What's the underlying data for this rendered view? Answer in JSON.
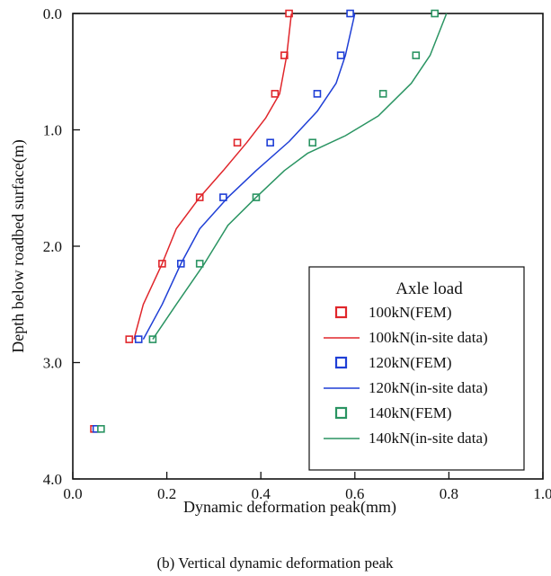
{
  "caption": "(b) Vertical dynamic deformation peak",
  "chart_data": {
    "type": "scatter",
    "xlabel": "Dynamic deformation peak(mm)",
    "ylabel": "Depth below roadbed surface(m)",
    "xlim": [
      0.0,
      1.0
    ],
    "ylim": [
      0.0,
      4.0
    ],
    "y_inverted": true,
    "x_ticks": [
      "0.0",
      "0.2",
      "0.4",
      "0.6",
      "0.8",
      "1.0"
    ],
    "y_ticks": [
      "0.0",
      "1.0",
      "2.0",
      "3.0",
      "4.0"
    ],
    "x_tick_values": [
      0.0,
      0.2,
      0.4,
      0.6,
      0.8,
      1.0
    ],
    "y_tick_values": [
      0.0,
      1.0,
      2.0,
      3.0,
      4.0
    ],
    "grid": false,
    "legend": {
      "title": "Axle load",
      "placement": "bottom-right"
    },
    "series": [
      {
        "name": "100kN(FEM)",
        "kind": "markers",
        "color": "#e0262b",
        "points": [
          [
            0.46,
            0.0
          ],
          [
            0.45,
            0.36
          ],
          [
            0.43,
            0.69
          ],
          [
            0.35,
            1.11
          ],
          [
            0.27,
            1.58
          ],
          [
            0.19,
            2.15
          ],
          [
            0.12,
            2.8
          ],
          [
            0.045,
            3.57
          ]
        ]
      },
      {
        "name": "100kN(in-site data)",
        "kind": "line",
        "color": "#e0262b",
        "points": [
          [
            0.465,
            0.0
          ],
          [
            0.455,
            0.36
          ],
          [
            0.44,
            0.69
          ],
          [
            0.41,
            0.9
          ],
          [
            0.37,
            1.11
          ],
          [
            0.32,
            1.35
          ],
          [
            0.27,
            1.58
          ],
          [
            0.22,
            1.85
          ],
          [
            0.19,
            2.15
          ],
          [
            0.15,
            2.5
          ],
          [
            0.13,
            2.8
          ]
        ]
      },
      {
        "name": "120kN(FEM)",
        "kind": "markers",
        "color": "#1f3fd6",
        "points": [
          [
            0.59,
            0.0
          ],
          [
            0.57,
            0.36
          ],
          [
            0.52,
            0.69
          ],
          [
            0.42,
            1.11
          ],
          [
            0.32,
            1.58
          ],
          [
            0.23,
            2.15
          ],
          [
            0.14,
            2.8
          ],
          [
            0.05,
            3.57
          ]
        ]
      },
      {
        "name": "120kN(in-site data)",
        "kind": "line",
        "color": "#1f3fd6",
        "points": [
          [
            0.6,
            0.0
          ],
          [
            0.58,
            0.36
          ],
          [
            0.56,
            0.6
          ],
          [
            0.52,
            0.84
          ],
          [
            0.46,
            1.1
          ],
          [
            0.39,
            1.35
          ],
          [
            0.33,
            1.58
          ],
          [
            0.27,
            1.85
          ],
          [
            0.23,
            2.15
          ],
          [
            0.19,
            2.5
          ],
          [
            0.15,
            2.8
          ]
        ]
      },
      {
        "name": "140kN(FEM)",
        "kind": "markers",
        "color": "#2a9462",
        "points": [
          [
            0.77,
            0.0
          ],
          [
            0.73,
            0.36
          ],
          [
            0.66,
            0.69
          ],
          [
            0.51,
            1.11
          ],
          [
            0.39,
            1.58
          ],
          [
            0.27,
            2.15
          ],
          [
            0.17,
            2.8
          ],
          [
            0.06,
            3.57
          ]
        ]
      },
      {
        "name": "140kN(in-site data)",
        "kind": "line",
        "color": "#2a9462",
        "points": [
          [
            0.795,
            0.0
          ],
          [
            0.76,
            0.36
          ],
          [
            0.72,
            0.6
          ],
          [
            0.65,
            0.88
          ],
          [
            0.58,
            1.05
          ],
          [
            0.5,
            1.2
          ],
          [
            0.45,
            1.35
          ],
          [
            0.39,
            1.58
          ],
          [
            0.33,
            1.82
          ],
          [
            0.28,
            2.15
          ],
          [
            0.22,
            2.5
          ],
          [
            0.17,
            2.8
          ]
        ]
      }
    ]
  }
}
